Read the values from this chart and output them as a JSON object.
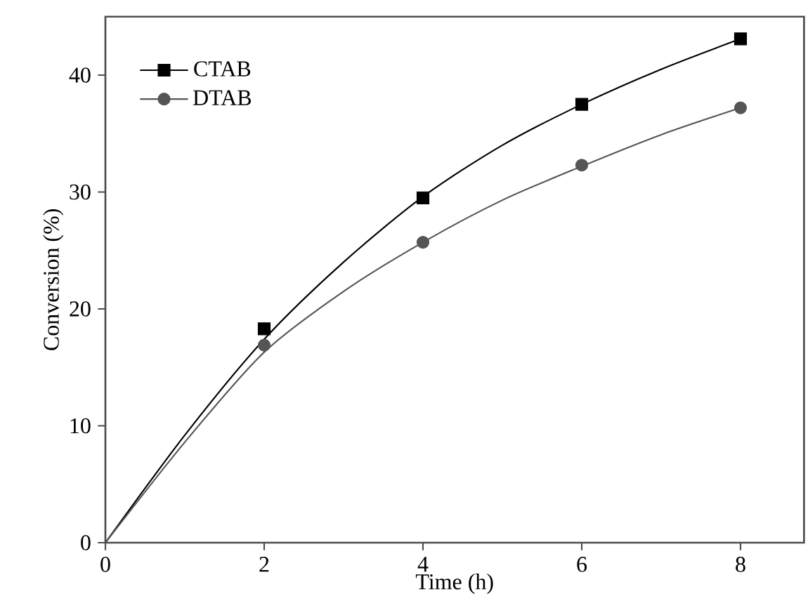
{
  "chart_data": {
    "type": "scatter",
    "xlabel": "Time (h)",
    "ylabel": "Conversion (%)",
    "xlim": [
      0,
      8.8
    ],
    "ylim": [
      0,
      45
    ],
    "xticks": [
      0,
      2,
      4,
      6,
      8
    ],
    "yticks": [
      0,
      10,
      20,
      30,
      40
    ],
    "legend": "top left",
    "grid": false,
    "series": [
      {
        "name": "CTAB",
        "color": "#000000",
        "marker": "square",
        "x": [
          2,
          4,
          6,
          8
        ],
        "values": [
          18.3,
          29.5,
          37.5,
          43.1
        ]
      },
      {
        "name": "DTAB",
        "color": "#555555",
        "marker": "circle",
        "x": [
          2,
          4,
          6,
          8
        ],
        "values": [
          16.9,
          25.7,
          32.3,
          37.2
        ]
      },
      {
        "type": "line",
        "color": "#000000",
        "marker": "none",
        "x": [
          0,
          1,
          2,
          3,
          4,
          5,
          6,
          7,
          8
        ],
        "values": [
          0,
          9.2,
          17.4,
          24.0,
          29.6,
          34.0,
          37.5,
          40.5,
          43.1
        ]
      },
      {
        "type": "line",
        "color": "#555555",
        "marker": "none",
        "x": [
          0,
          1,
          2,
          3,
          4,
          5,
          6,
          7,
          8
        ],
        "values": [
          0,
          8.6,
          16.3,
          21.5,
          25.7,
          29.3,
          32.2,
          34.9,
          37.2
        ]
      }
    ]
  }
}
